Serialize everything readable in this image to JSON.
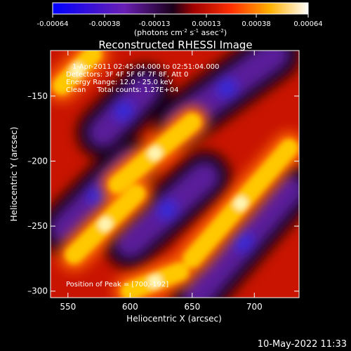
{
  "colorbar": {
    "ticks": [
      "-0.00064",
      "-0.00038",
      "-0.00013",
      "0.00013",
      "0.00038",
      "0.00064"
    ],
    "tick_values": [
      -0.00064,
      -0.00038,
      -0.00013,
      0.00013,
      0.00038,
      0.00064
    ],
    "unit_prefix": "(photons cm",
    "unit_exp1": "-2",
    "unit_mid": " s",
    "unit_exp2": "-1",
    "unit_mid2": " asec",
    "unit_exp3": "-2",
    "unit_suffix": ")"
  },
  "title": "Reconstructed RHESSI Image",
  "info": {
    "line1": "1-Apr-2011 02:45:04.000 to 02:51:04.000",
    "line2": "Detectors: 3F 4F 5F 6F 7F 8F, Att 0",
    "line3": "Energy Range: 12.0 - 25.0 keV",
    "line4": "Clean     Total counts: 1.27E+04",
    "peak": "Position of Peak = [700,-192]"
  },
  "timestamp": "10-May-2022 11:33",
  "chart_data": {
    "type": "heatmap",
    "title": "Reconstructed RHESSI Image",
    "xlabel": "Heliocentric X (arcsec)",
    "ylabel": "Heliocentric Y (arcsec)",
    "xlim": [
      536,
      736
    ],
    "ylim": [
      -305,
      -115
    ],
    "xticks": [
      550,
      600,
      650,
      700
    ],
    "yticks": [
      -150,
      -200,
      -250,
      -300
    ],
    "colorbar_range": [
      -0.00064,
      0.00064
    ],
    "colormap": [
      "#0000ff",
      "#6a1fb4",
      "#000000",
      "#c80000",
      "#ff6a00",
      "#ffd200",
      "#ffffff"
    ],
    "bright_bands": [
      {
        "from": [
          555,
          -272
        ],
        "to": [
          605,
          -225
        ],
        "peak": 0.00064
      },
      {
        "from": [
          590,
          -218
        ],
        "to": [
          650,
          -170
        ],
        "peak": 0.00064
      },
      {
        "from": [
          600,
          -300
        ],
        "to": [
          640,
          -285
        ],
        "peak": 0.00064
      },
      {
        "from": [
          650,
          -275
        ],
        "to": [
          728,
          -190
        ],
        "peak": 0.00064
      },
      {
        "from": [
          545,
          -142
        ],
        "to": [
          570,
          -118
        ],
        "peak": 0.0005
      }
    ],
    "dark_bands": [
      {
        "from": [
          548,
          -252
        ],
        "to": [
          600,
          -202
        ],
        "trough": -0.00064
      },
      {
        "from": [
          578,
          -178
        ],
        "to": [
          612,
          -145
        ],
        "trough": -0.00064
      },
      {
        "from": [
          600,
          -263
        ],
        "to": [
          660,
          -212
        ],
        "trough": -0.00064
      },
      {
        "from": [
          640,
          -170
        ],
        "to": [
          716,
          -118
        ],
        "trough": -0.00064
      },
      {
        "from": [
          654,
          -302
        ],
        "to": [
          728,
          -222
        ],
        "trough": -0.00064
      }
    ],
    "peak_position": [
      700,
      -192
    ]
  }
}
